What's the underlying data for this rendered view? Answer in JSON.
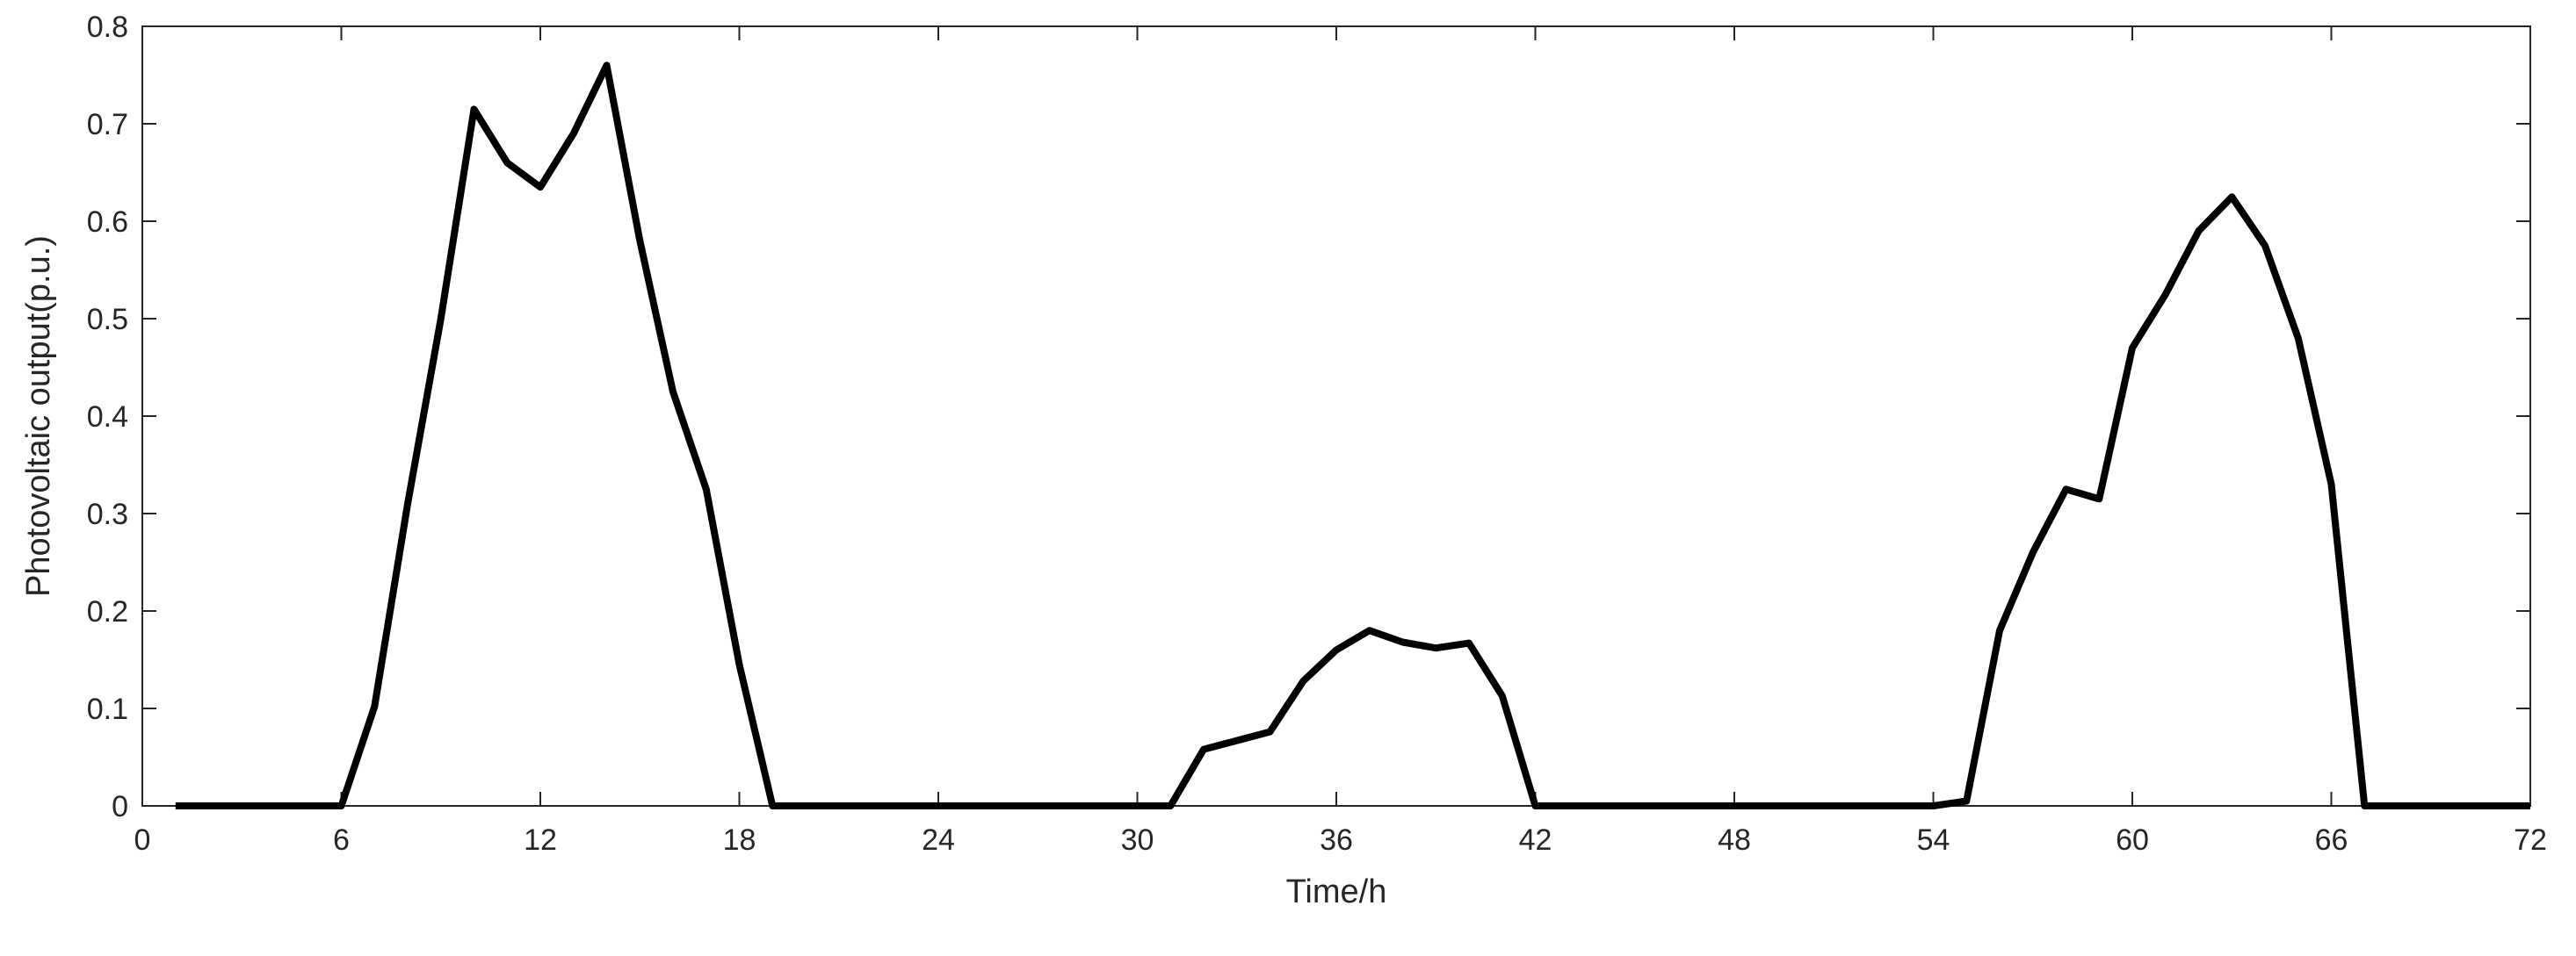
{
  "chart_data": {
    "type": "line",
    "title": "",
    "xlabel": "Time/h",
    "ylabel": "Photovoltaic output(p.u.)",
    "xlim": [
      0,
      72
    ],
    "ylim": [
      0,
      0.8
    ],
    "xticks": [
      0,
      6,
      12,
      18,
      24,
      30,
      36,
      42,
      48,
      54,
      60,
      66,
      72
    ],
    "yticks": [
      0,
      0.1,
      0.2,
      0.3,
      0.4,
      0.5,
      0.6,
      0.7,
      0.8
    ],
    "ytick_labels": [
      "0",
      "0.1",
      "0.2",
      "0.3",
      "0.4",
      "0.5",
      "0.6",
      "0.7",
      "0.8"
    ],
    "grid": false,
    "line_color": "#000000",
    "series": [
      {
        "x": [
          1,
          2,
          3,
          4,
          5,
          6,
          7,
          8,
          9,
          10,
          11,
          12,
          13,
          14,
          15,
          16,
          17,
          18,
          19,
          20,
          21,
          22,
          23,
          24,
          25,
          26,
          27,
          28,
          29,
          30,
          31,
          32,
          33,
          34,
          35,
          36,
          37,
          38,
          39,
          40,
          41,
          42,
          43,
          44,
          45,
          46,
          47,
          48,
          49,
          50,
          51,
          52,
          53,
          54,
          55,
          56,
          57,
          58,
          59,
          60,
          61,
          62,
          63,
          64,
          65,
          66,
          67,
          68,
          69,
          70,
          71,
          72
        ],
        "y": [
          0,
          0,
          0,
          0,
          0,
          0,
          0.102,
          0.31,
          0.5,
          0.715,
          0.66,
          0.635,
          0.69,
          0.76,
          0.58,
          0.425,
          0.325,
          0.145,
          0,
          0,
          0,
          0,
          0,
          0,
          0,
          0,
          0,
          0,
          0,
          0,
          0,
          0.058,
          0.067,
          0.076,
          0.128,
          0.16,
          0.18,
          0.168,
          0.162,
          0.167,
          0.113,
          0,
          0,
          0,
          0,
          0,
          0,
          0,
          0,
          0,
          0,
          0,
          0,
          0,
          0.005,
          0.18,
          0.26,
          0.325,
          0.315,
          0.47,
          0.525,
          0.59,
          0.625,
          0.575,
          0.48,
          0.33,
          0,
          0,
          0,
          0,
          0,
          0
        ]
      }
    ]
  }
}
